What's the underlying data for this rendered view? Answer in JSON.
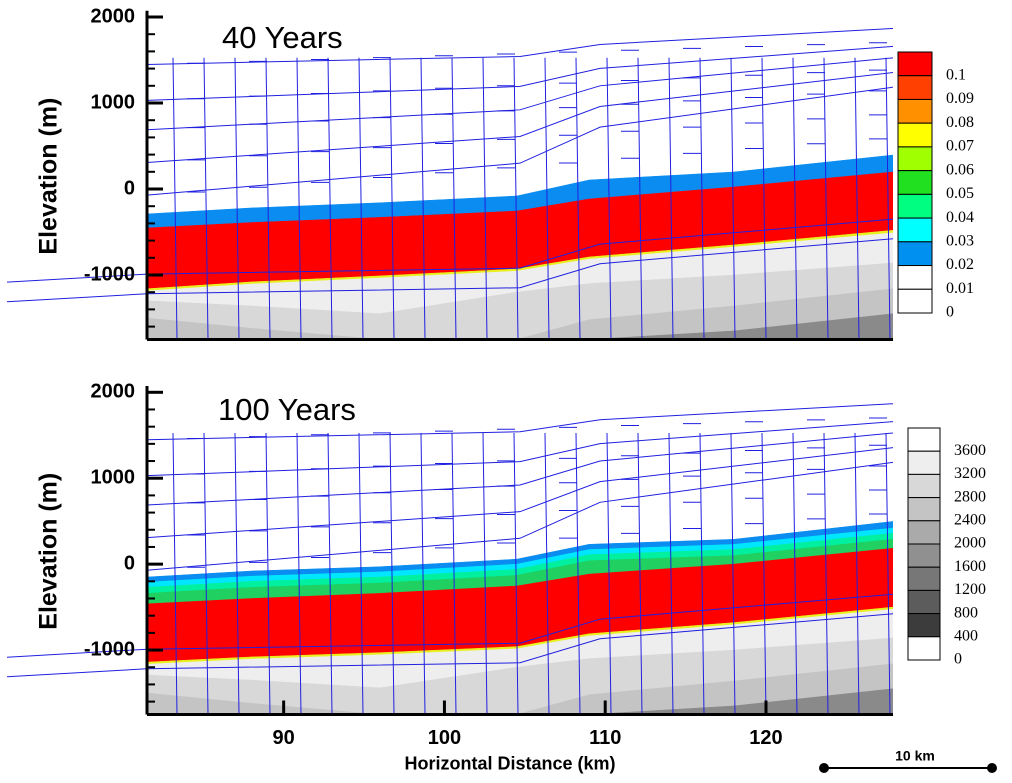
{
  "chart_data": [
    {
      "type": "contour",
      "title": "40 Years",
      "ylabel": "Elevation (m)",
      "xlim": [
        81.5,
        127.9
      ],
      "ylim": [
        -1750,
        2050
      ],
      "yticks": [
        2000,
        1000,
        0,
        -1000
      ],
      "x": [
        81.5,
        88,
        96,
        104.5,
        109,
        118,
        127.9
      ],
      "layers": [
        {
          "color": "#0a8cf0",
          "top": [
            -290,
            -220,
            -160,
            -81,
            105,
            198,
            395
          ]
        },
        {
          "color": "#ff0000",
          "top": [
            -453,
            -390,
            -330,
            -256,
            -116,
            23,
            198
          ]
        },
        {
          "color": "#e8f020",
          "top": [
            -1160,
            -1080,
            -1010,
            -930,
            -790,
            -650,
            -480
          ]
        },
        {
          "color": "#eeeeee",
          "top": [
            -1185,
            -1105,
            -1035,
            -955,
            -815,
            -675,
            -510
          ]
        },
        {
          "color": "#d8d8d8",
          "top": [
            -1300,
            -1360,
            -1450,
            -1200,
            -1100,
            -1000,
            -860
          ]
        },
        {
          "color": "#c4c4c4",
          "top": [
            -1500,
            -1620,
            -1750,
            -1750,
            -1520,
            -1360,
            -1160
          ]
        },
        {
          "color": "#8a8a8a",
          "top": [
            -1750,
            -1750,
            -1750,
            -1750,
            -1750,
            -1650,
            -1450
          ]
        }
      ],
      "colorbar": {
        "levels": [
          0.1,
          0.09,
          0.08,
          0.07,
          0.06,
          0.05,
          0.04,
          0.03,
          0.02,
          0.01,
          0
        ],
        "colors": [
          "#ff0000",
          "#ff4000",
          "#ff9000",
          "#ffff00",
          "#a0ff00",
          "#20e020",
          "#00ff80",
          "#00ffff",
          "#0090f0",
          "#ffffff",
          "#ffffff"
        ]
      }
    },
    {
      "type": "contour",
      "title": "100 Years",
      "ylabel": "Elevation (m)",
      "xlabel": "Horizontal Distance (km)",
      "xlim": [
        81.5,
        127.9
      ],
      "ylim": [
        -1750,
        2050
      ],
      "yticks": [
        2000,
        1000,
        0,
        -1000
      ],
      "xticks": [
        90,
        100,
        110,
        120
      ],
      "x": [
        81.5,
        88,
        96,
        104.5,
        109,
        118,
        127.9
      ],
      "layers": [
        {
          "color": "#0a8cf0",
          "top": [
            -150,
            -80,
            -30,
            58,
            231,
            289,
            497
          ]
        },
        {
          "color": "#00e6ff",
          "top": [
            -210,
            -140,
            -90,
            0,
            170,
            230,
            420
          ]
        },
        {
          "color": "#00f0a0",
          "top": [
            -270,
            -200,
            -150,
            -60,
            110,
            170,
            360
          ]
        },
        {
          "color": "#20d060",
          "top": [
            -340,
            -270,
            -220,
            -130,
            40,
            100,
            290
          ]
        },
        {
          "color": "#ff0000",
          "top": [
            -462,
            -400,
            -340,
            -254,
            -116,
            0,
            185
          ]
        },
        {
          "color": "#e8f020",
          "top": [
            -1140,
            -1080,
            -1030,
            -960,
            -810,
            -680,
            -500
          ]
        },
        {
          "color": "#eeeeee",
          "top": [
            -1165,
            -1105,
            -1055,
            -985,
            -835,
            -705,
            -525
          ]
        },
        {
          "color": "#d8d8d8",
          "top": [
            -1290,
            -1350,
            -1440,
            -1200,
            -1100,
            -1000,
            -860
          ]
        },
        {
          "color": "#c4c4c4",
          "top": [
            -1500,
            -1620,
            -1750,
            -1750,
            -1520,
            -1360,
            -1160
          ]
        },
        {
          "color": "#8a8a8a",
          "top": [
            -1750,
            -1750,
            -1750,
            -1750,
            -1750,
            -1650,
            -1450
          ]
        }
      ],
      "colorbar": {
        "levels": [
          3600,
          3200,
          2800,
          2400,
          2000,
          1600,
          1200,
          800,
          400,
          0
        ],
        "colors": [
          "#ffffff",
          "#eeeeee",
          "#d8d8d8",
          "#c4c4c4",
          "#aaaaaa",
          "#909090",
          "#777777",
          "#5c5c5c",
          "#3c3c3c",
          "#ffffff"
        ]
      },
      "scale_bar": "10 km"
    }
  ]
}
